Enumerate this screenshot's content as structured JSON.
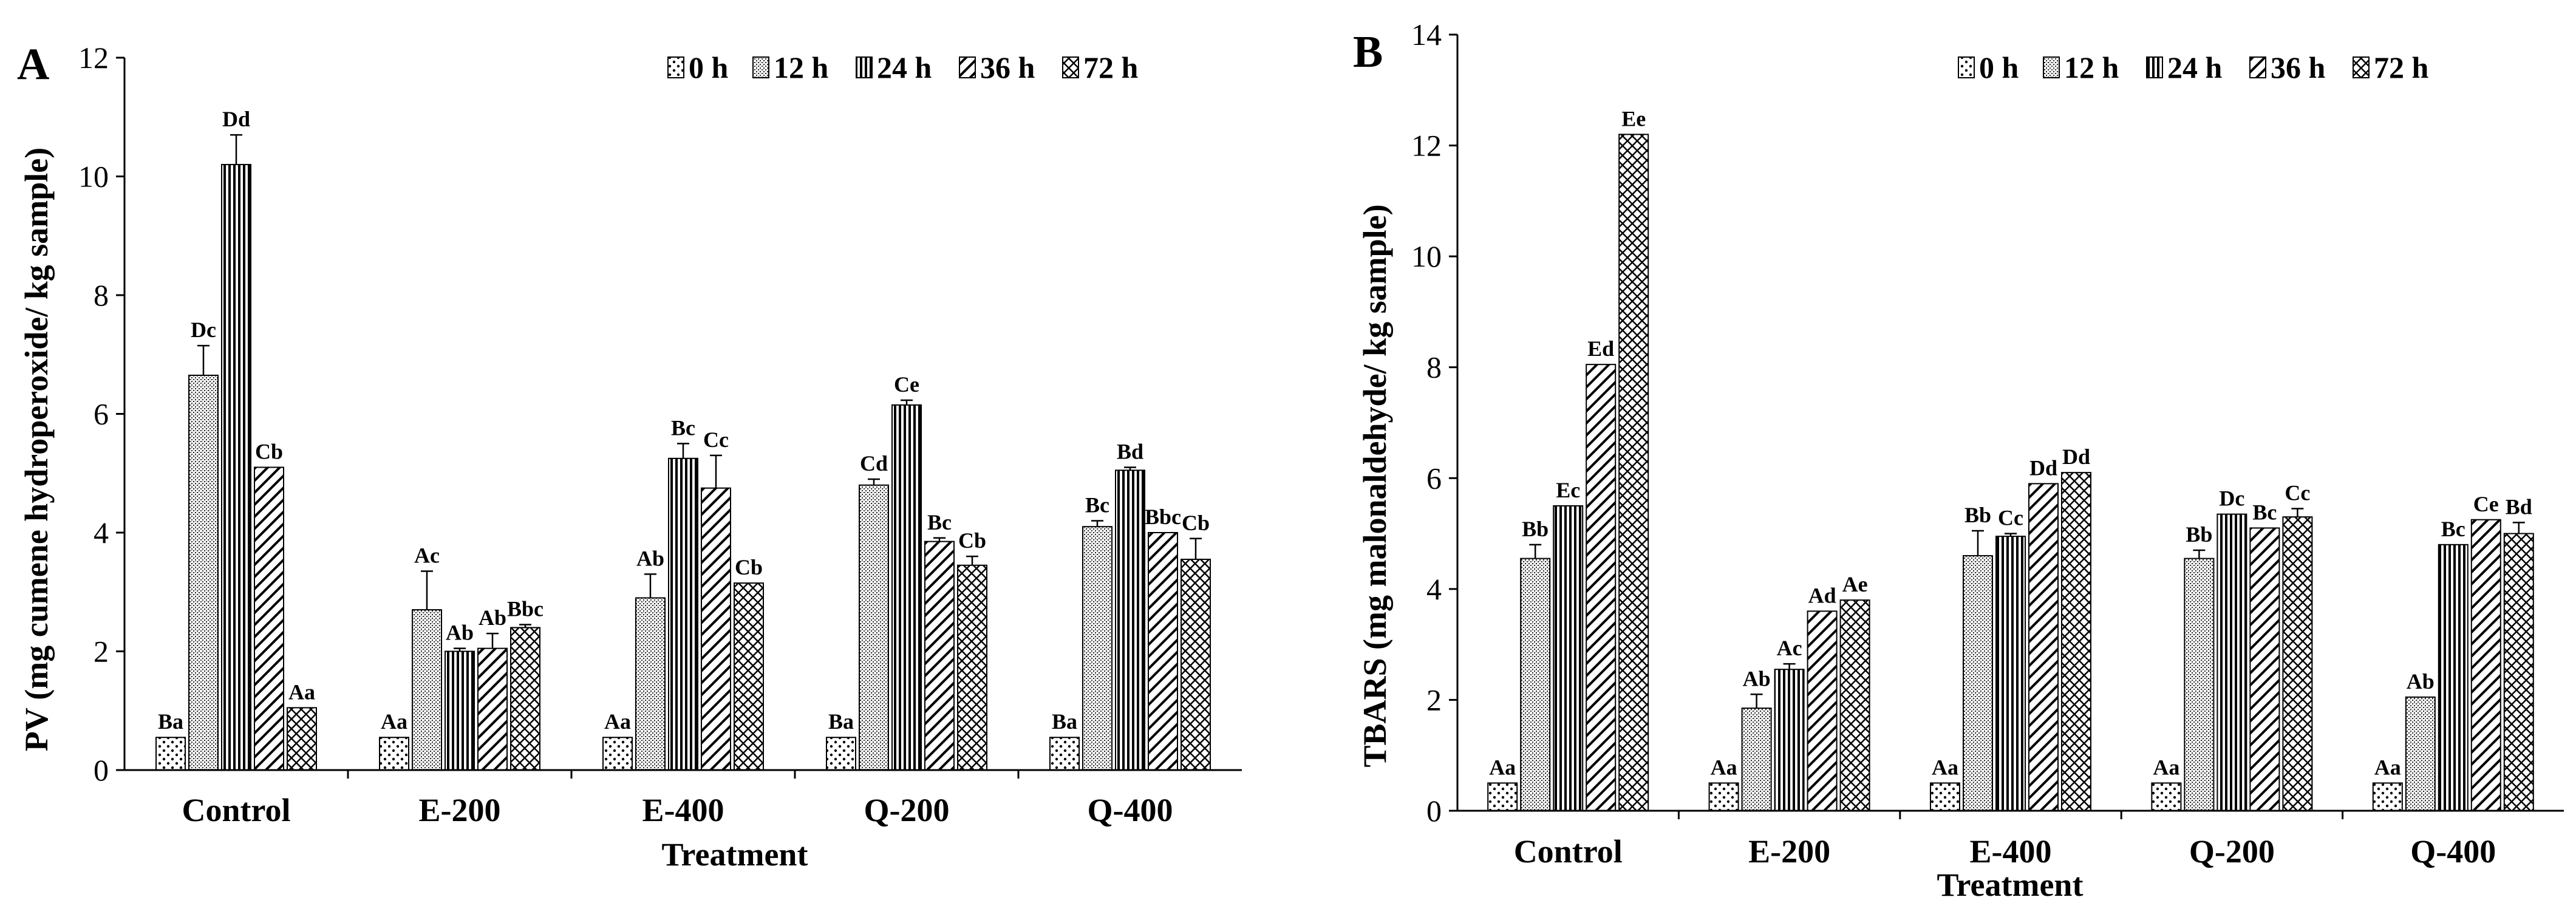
{
  "chart_data": [
    {
      "type": "bar",
      "panel": "A",
      "ylabel": "PV (mg cumene hydroperoxide/ kg sample)",
      "xlabel": "Treatment",
      "ylim": [
        0,
        12
      ],
      "yticks": [
        0,
        2,
        4,
        6,
        8,
        10,
        12
      ],
      "categories": [
        "Control",
        "E-200",
        "E-400",
        "Q-200",
        "Q-400"
      ],
      "legend_position": "top-right",
      "series": [
        {
          "name": "0 h",
          "pattern": "dots",
          "values": [
            0.55,
            0.55,
            0.55,
            0.55,
            0.55
          ],
          "errors": [
            0,
            0,
            0,
            0,
            0
          ],
          "labels": [
            "Ba",
            "Aa",
            "Aa",
            "Ba",
            "Ba"
          ]
        },
        {
          "name": "12 h",
          "pattern": "dense",
          "values": [
            6.65,
            2.7,
            2.9,
            4.8,
            4.1
          ],
          "errors": [
            0.5,
            0.65,
            0.4,
            0.1,
            0.1
          ],
          "labels": [
            "Dc",
            "Ac",
            "Ab",
            "Cd",
            "Bc"
          ]
        },
        {
          "name": "24 h",
          "pattern": "vertical",
          "values": [
            10.2,
            2.0,
            5.25,
            6.15,
            5.05
          ],
          "errors": [
            0.5,
            0.05,
            0.25,
            0.08,
            0.05
          ],
          "labels": [
            "Dd",
            "Ab",
            "Bc",
            "Ce",
            "Bd"
          ]
        },
        {
          "name": "36 h",
          "pattern": "diagonal",
          "values": [
            5.1,
            2.05,
            4.75,
            3.85,
            4.0
          ],
          "errors": [
            0,
            0.25,
            0.55,
            0.06,
            0
          ],
          "labels": [
            "Cb",
            "Ab",
            "Cc",
            "Bc",
            "Bbc"
          ]
        },
        {
          "name": "72 h",
          "pattern": "crosshatch",
          "values": [
            1.05,
            2.4,
            3.15,
            3.45,
            3.55
          ],
          "errors": [
            0,
            0.05,
            0,
            0.15,
            0.35
          ],
          "labels": [
            "Aa",
            "Bbc",
            "Cb",
            "Cb",
            "Cb"
          ]
        }
      ]
    },
    {
      "type": "bar",
      "panel": "B",
      "ylabel": "TBARS (mg malonaldehyde/ kg sample)",
      "xlabel": "Treatment",
      "ylim": [
        0,
        14
      ],
      "yticks": [
        0,
        2,
        4,
        6,
        8,
        10,
        12,
        14
      ],
      "categories": [
        "Control",
        "E-200",
        "E-400",
        "Q-200",
        "Q-400"
      ],
      "legend_position": "top-right",
      "series": [
        {
          "name": "0 h",
          "pattern": "dots",
          "values": [
            0.5,
            0.5,
            0.5,
            0.5,
            0.5
          ],
          "errors": [
            0,
            0,
            0,
            0,
            0
          ],
          "labels": [
            "Aa",
            "Aa",
            "Aa",
            "Aa",
            "Aa"
          ]
        },
        {
          "name": "12 h",
          "pattern": "dense",
          "values": [
            4.55,
            1.85,
            4.6,
            4.55,
            2.05
          ],
          "errors": [
            0.25,
            0.25,
            0.45,
            0.15,
            0
          ],
          "labels": [
            "Bb",
            "Ab",
            "Bb",
            "Bb",
            "Ab"
          ]
        },
        {
          "name": "24 h",
          "pattern": "vertical",
          "values": [
            5.5,
            2.55,
            4.95,
            5.35,
            4.8
          ],
          "errors": [
            0,
            0.1,
            0.05,
            0,
            0
          ],
          "labels": [
            "Ec",
            "Ac",
            "Cc",
            "Dc",
            "Bc"
          ]
        },
        {
          "name": "36 h",
          "pattern": "diagonal",
          "values": [
            8.05,
            3.6,
            5.9,
            5.1,
            5.25
          ],
          "errors": [
            0,
            0,
            0,
            0,
            0
          ],
          "labels": [
            "Ed",
            "Ad",
            "Dd",
            "Bc",
            "Ce"
          ]
        },
        {
          "name": "72 h",
          "pattern": "crosshatch",
          "values": [
            12.2,
            3.8,
            6.1,
            5.3,
            5.0
          ],
          "errors": [
            0,
            0,
            0,
            0.15,
            0.2
          ],
          "labels": [
            "Ee",
            "Ae",
            "Dd",
            "Cc",
            "Bd"
          ]
        }
      ]
    }
  ]
}
